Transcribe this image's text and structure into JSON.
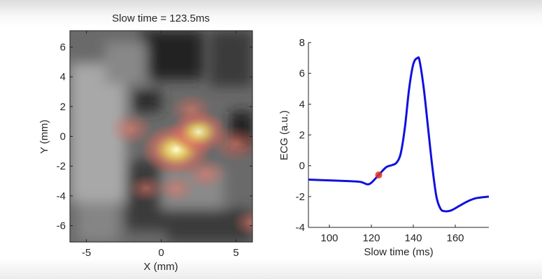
{
  "chart_data": [
    {
      "type": "heatmap",
      "title": "Slow time = 123.5ms",
      "xlabel": "X (mm)",
      "ylabel": "Y (mm)",
      "xlim": [
        -6.1,
        6.1
      ],
      "ylim": [
        -7.1,
        7.1
      ],
      "xticks": [
        -5,
        0,
        5
      ],
      "yticks": [
        6,
        4,
        2,
        0,
        -2,
        -4,
        -6
      ],
      "colormap": "gray background with hot overlay",
      "hotspots": [
        {
          "x": 1.0,
          "y": -0.9,
          "intensity": 1.0
        },
        {
          "x": 2.5,
          "y": 0.3,
          "intensity": 0.75
        },
        {
          "x": 5.0,
          "y": -0.5,
          "intensity": 0.55
        },
        {
          "x": -2.0,
          "y": 0.5,
          "intensity": 0.45
        },
        {
          "x": 2.0,
          "y": 1.8,
          "intensity": 0.4
        },
        {
          "x": 3.0,
          "y": -2.5,
          "intensity": 0.4
        },
        {
          "x": -1.0,
          "y": -3.5,
          "intensity": 0.3
        },
        {
          "x": 1.0,
          "y": -3.5,
          "intensity": 0.3
        },
        {
          "x": 6.0,
          "y": -5.8,
          "intensity": 0.3
        }
      ]
    },
    {
      "type": "line",
      "title": "",
      "xlabel": "Slow time (ms)",
      "ylabel": "ECG (a.u.)",
      "xlim": [
        90,
        176
      ],
      "ylim": [
        -4,
        8
      ],
      "xticks": [
        100,
        120,
        140,
        160
      ],
      "yticks": [
        8,
        6,
        4,
        2,
        0,
        -2,
        -4
      ],
      "series": [
        {
          "name": "ECG",
          "color": "#1010e0",
          "x": [
            90,
            100,
            110,
            115,
            118,
            120,
            123.5,
            127,
            130,
            132,
            134,
            136,
            138,
            140,
            142,
            143,
            145,
            147,
            149,
            151,
            153,
            155,
            158,
            162,
            166,
            170,
            176
          ],
          "y": [
            -0.9,
            -0.95,
            -1.0,
            -1.05,
            -1.2,
            -1.1,
            -0.6,
            -0.1,
            0.05,
            0.2,
            0.8,
            2.5,
            5.0,
            6.6,
            7.0,
            6.8,
            5.0,
            2.5,
            0.0,
            -2.0,
            -2.8,
            -2.95,
            -2.9,
            -2.6,
            -2.3,
            -2.1,
            -2.0
          ]
        }
      ],
      "marker": {
        "x": 123.5,
        "y": -0.6,
        "color": "#e03020"
      }
    }
  ]
}
